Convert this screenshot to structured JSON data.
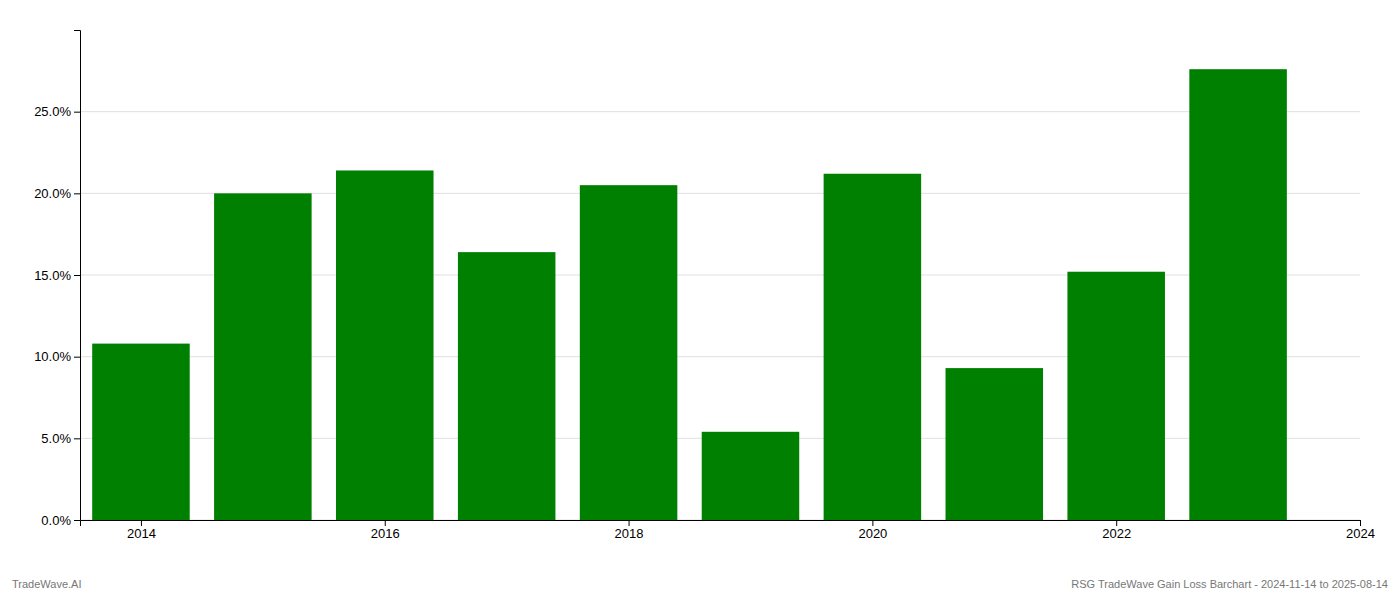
{
  "chart_data": {
    "type": "bar",
    "x": [
      2014,
      2015,
      2016,
      2017,
      2018,
      2019,
      2020,
      2021,
      2022,
      2023
    ],
    "values": [
      0.108,
      0.2,
      0.214,
      0.164,
      0.205,
      0.054,
      0.212,
      0.093,
      0.152,
      0.276
    ],
    "color": "#008000",
    "xlim": [
      2013.5,
      2024.0
    ],
    "xticks": [
      2014,
      2016,
      2018,
      2020,
      2022,
      2024
    ],
    "ylim": [
      0,
      0.3
    ],
    "yticks": [
      {
        "value": 0.0,
        "label": "0.0%"
      },
      {
        "value": 0.05,
        "label": "5.0%"
      },
      {
        "value": 0.1,
        "label": "10.0%"
      },
      {
        "value": 0.15,
        "label": "15.0%"
      },
      {
        "value": 0.2,
        "label": "20.0%"
      },
      {
        "value": 0.25,
        "label": "25.0%"
      }
    ],
    "grid": true,
    "annotations": [
      "TradeWave.AI",
      "RSG TradeWave Gain Loss Barchart - 2024-11-14 to 2025-08-14"
    ]
  }
}
